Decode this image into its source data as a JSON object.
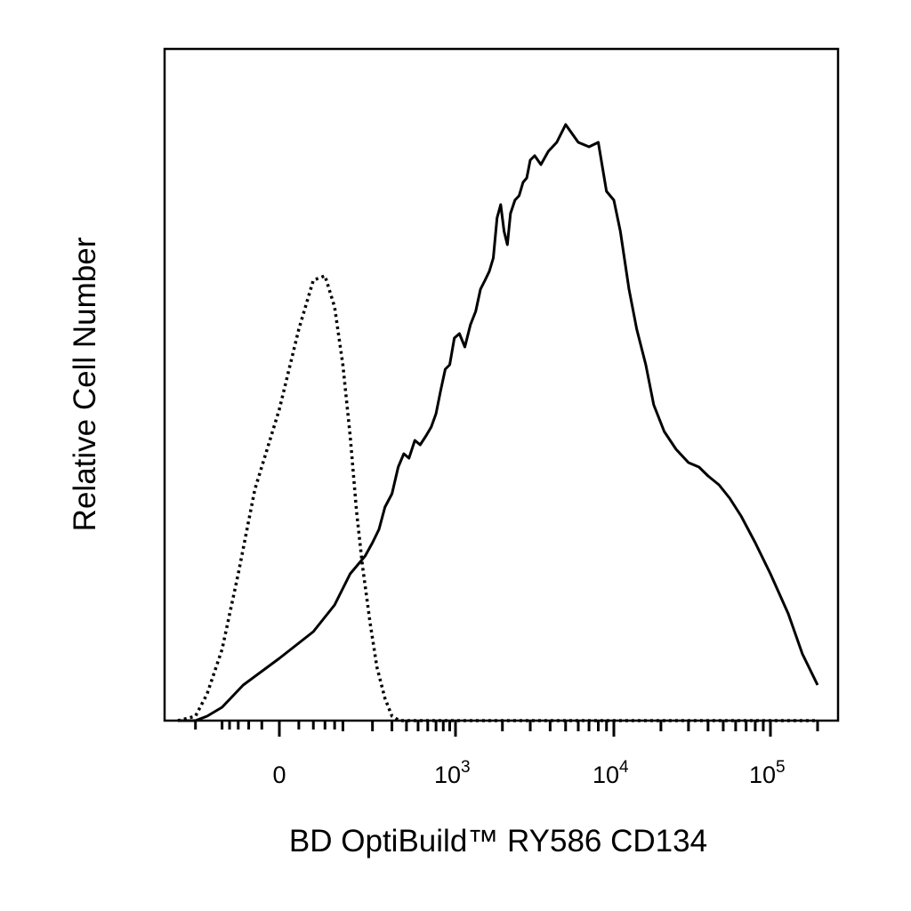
{
  "chart_data": {
    "type": "line",
    "title": "",
    "xlabel": "BD OptiBuild™ RY586 CD134",
    "ylabel": "Relative Cell Number",
    "x_scale": "biexponential",
    "xlim": [
      -300,
      200000
    ],
    "grid": false,
    "legend": "none",
    "x_tick_labels": [
      {
        "base": "0",
        "exp": "",
        "value": 0
      },
      {
        "base": "10",
        "exp": "3",
        "value": 1000
      },
      {
        "base": "10",
        "exp": "4",
        "value": 10000
      },
      {
        "base": "10",
        "exp": "5",
        "value": 100000
      }
    ],
    "series": [
      {
        "style": "dotted",
        "color": "#000000",
        "x": [
          -300,
          -200,
          -150,
          -100,
          -60,
          -30,
          0,
          20,
          40,
          60,
          80,
          100,
          120,
          140,
          160,
          190,
          220,
          260,
          300,
          350,
          400,
          500,
          700,
          1000,
          3000,
          10000,
          100000,
          200000
        ],
        "y": [
          0,
          1,
          6,
          16,
          33,
          52,
          70,
          88,
          99,
          100,
          93,
          80,
          64,
          47,
          35,
          22,
          12,
          5,
          1,
          0,
          0,
          0,
          0,
          0,
          0,
          0,
          0,
          0
        ]
      },
      {
        "style": "solid",
        "color": "#000000",
        "x": [
          -300,
          -200,
          -150,
          -100,
          -50,
          0,
          40,
          80,
          120,
          170,
          200,
          230,
          260,
          300,
          340,
          380,
          420,
          470,
          520,
          580,
          640,
          700,
          760,
          830,
          900,
          980,
          1060,
          1150,
          1250,
          1350,
          1450,
          1550,
          1650,
          1750,
          1850,
          1950,
          2050,
          2150,
          2250,
          2400,
          2550,
          2700,
          2850,
          3000,
          3200,
          3500,
          3900,
          4400,
          5000,
          6000,
          7000,
          8000,
          9000,
          10000,
          11000,
          12500,
          14000,
          16000,
          18000,
          21000,
          25000,
          30000,
          35000,
          40000,
          47000,
          55000,
          65000,
          80000,
          100000,
          130000,
          160000,
          200000
        ],
        "y": [
          0,
          0,
          1,
          3,
          8,
          14,
          20,
          26,
          33,
          37,
          40,
          43,
          48,
          51,
          57,
          60,
          59,
          63,
          62,
          64,
          66,
          69,
          74,
          79,
          80,
          86,
          87,
          84,
          89,
          92,
          97,
          99,
          101,
          104,
          113,
          116,
          110,
          107,
          114,
          117,
          118,
          121,
          122,
          126,
          127,
          125,
          128,
          130,
          134,
          130,
          129,
          130,
          119,
          117,
          110,
          97,
          88,
          80,
          71,
          65,
          61,
          58,
          57,
          55,
          53,
          50,
          46,
          40,
          33,
          24,
          15,
          8
        ]
      }
    ],
    "ymax": 140
  }
}
